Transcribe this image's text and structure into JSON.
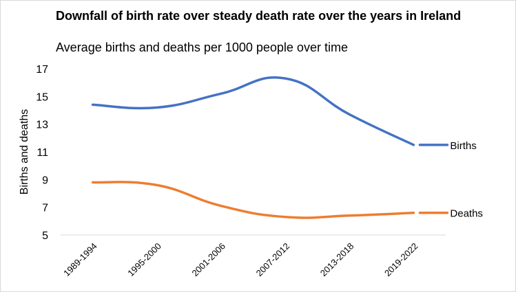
{
  "chart_data": {
    "type": "line",
    "title": "Downfall of birth rate over steady death rate over the years in Ireland",
    "subtitle": "Average births and deaths per 1000 people over time",
    "ylabel": "Births and deaths",
    "xlabel": "",
    "categories": [
      "1989-1994",
      "1995-2000",
      "2001-2006",
      "2007-2012",
      "2013-2018",
      "2019-2022"
    ],
    "ylim": [
      5,
      17
    ],
    "yticks": [
      5,
      7,
      9,
      11,
      13,
      15,
      17
    ],
    "grid": false,
    "legend": "inline labels at line ends",
    "series": [
      {
        "name": "Births",
        "values": [
          14.4,
          14.2,
          15.2,
          16.3,
          13.7,
          11.5
        ],
        "color": "#4472C4"
      },
      {
        "name": "Deaths",
        "values": [
          8.8,
          8.6,
          7.1,
          6.3,
          6.4,
          6.6
        ],
        "color": "#ED7D31"
      }
    ]
  }
}
